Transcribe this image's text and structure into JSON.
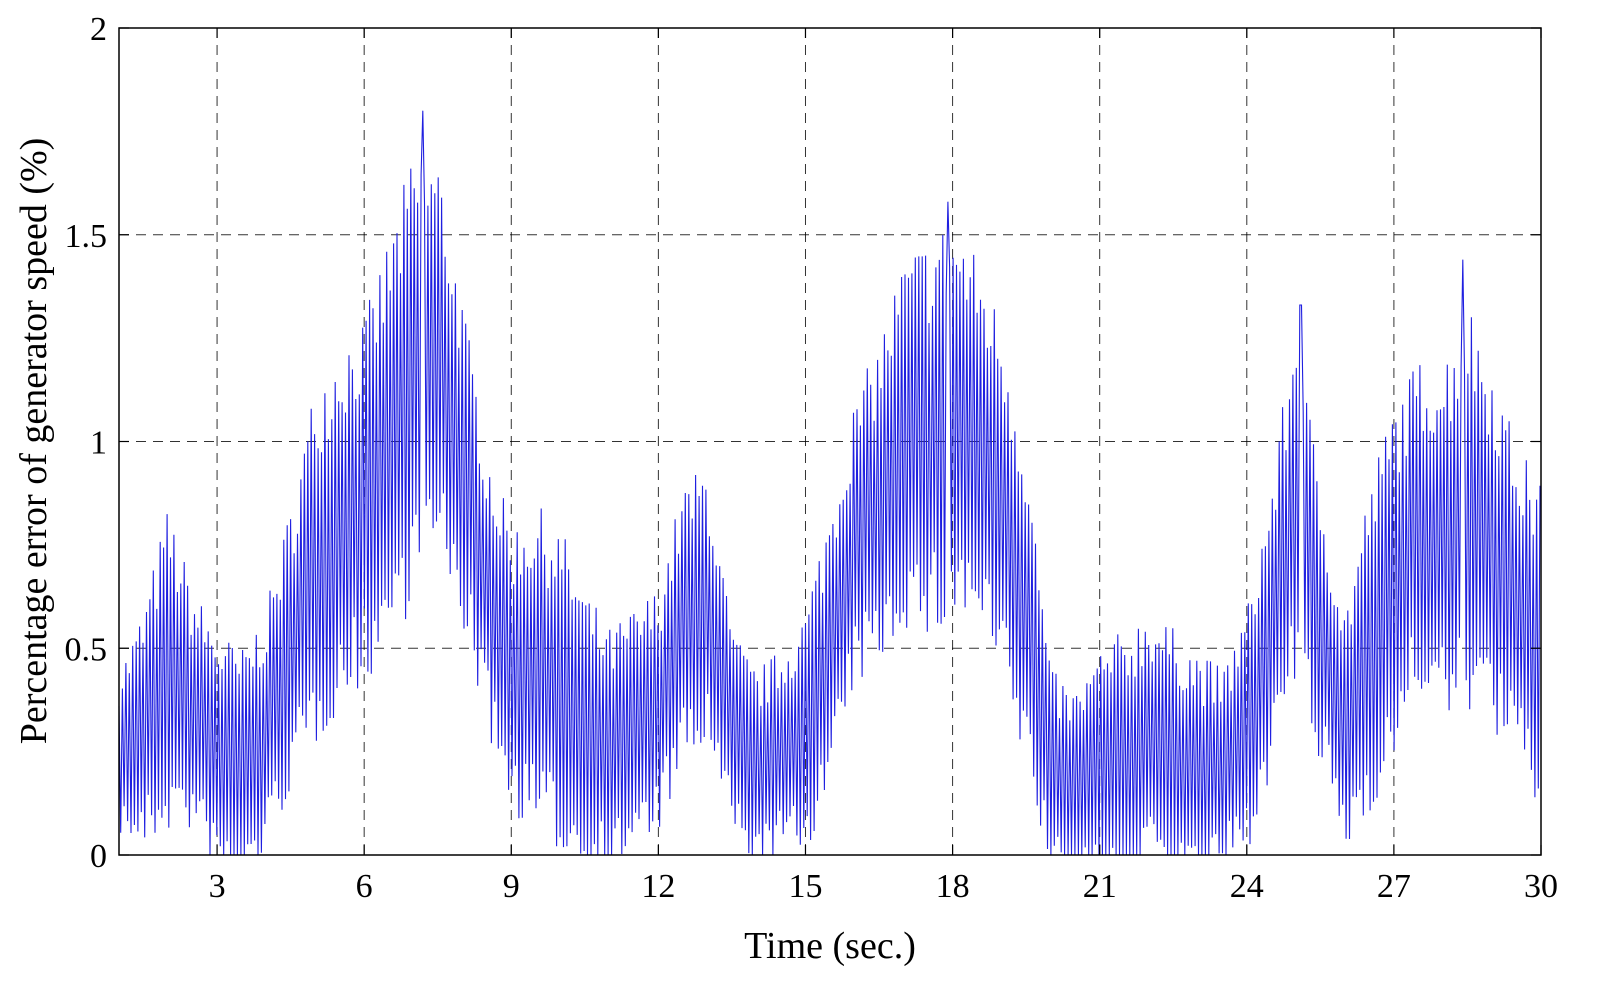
{
  "chart_data": {
    "type": "line",
    "title": "",
    "xlabel": "Time (sec.)",
    "ylabel": "Percentage error of generator speed (%)",
    "xlim": [
      1,
      30
    ],
    "ylim": [
      0,
      2
    ],
    "xticks": [
      3,
      6,
      9,
      12,
      15,
      18,
      21,
      24,
      27,
      30
    ],
    "xtick_labels": [
      "3",
      "6",
      "9",
      "12",
      "15",
      "18",
      "21",
      "24",
      "27",
      "30"
    ],
    "yticks": [
      0,
      0.5,
      1,
      1.5,
      2
    ],
    "ytick_labels": [
      "0",
      "0.5",
      "1",
      "1.5",
      "2"
    ],
    "grid": true,
    "grid_style": "dashed",
    "line_color": "#1f1fe0",
    "legend": "none",
    "series": [
      {
        "envelope_center": {
          "x": [
            1.0,
            1.5,
            2.0,
            2.5,
            3.0,
            3.5,
            4.0,
            4.5,
            5.0,
            5.5,
            6.0,
            6.5,
            7.0,
            7.5,
            8.0,
            8.5,
            9.0,
            9.5,
            10.0,
            10.5,
            11.0,
            11.5,
            12.0,
            12.5,
            13.0,
            13.5,
            14.0,
            14.5,
            15.0,
            15.5,
            16.0,
            16.5,
            17.0,
            17.5,
            18.0,
            18.5,
            19.0,
            19.5,
            20.0,
            20.5,
            21.0,
            21.5,
            22.0,
            22.5,
            23.0,
            23.5,
            24.0,
            24.5,
            25.0,
            25.5,
            26.0,
            26.5,
            27.0,
            27.5,
            28.0,
            28.5,
            29.0,
            29.5,
            30.0
          ],
          "y": [
            0.25,
            0.3,
            0.45,
            0.35,
            0.25,
            0.2,
            0.3,
            0.5,
            0.7,
            0.8,
            0.85,
            1.0,
            1.15,
            1.2,
            0.95,
            0.65,
            0.45,
            0.45,
            0.4,
            0.3,
            0.25,
            0.3,
            0.35,
            0.55,
            0.6,
            0.3,
            0.2,
            0.25,
            0.3,
            0.5,
            0.75,
            0.85,
            1.0,
            1.0,
            1.05,
            1.0,
            0.85,
            0.6,
            0.2,
            0.15,
            0.2,
            0.2,
            0.3,
            0.25,
            0.2,
            0.2,
            0.3,
            0.55,
            0.85,
            0.55,
            0.3,
            0.5,
            0.65,
            0.8,
            0.75,
            0.85,
            0.75,
            0.6,
            0.5
          ]
        },
        "envelope_halfwidth": {
          "x": [
            1.0,
            1.5,
            2.0,
            2.5,
            3.0,
            3.5,
            4.0,
            4.5,
            5.0,
            5.5,
            6.0,
            6.5,
            7.0,
            7.5,
            8.0,
            8.5,
            9.0,
            9.5,
            10.0,
            10.5,
            11.0,
            11.5,
            12.0,
            12.5,
            13.0,
            13.5,
            14.0,
            14.5,
            15.0,
            15.5,
            16.0,
            16.5,
            17.0,
            17.5,
            18.0,
            18.5,
            19.0,
            19.5,
            20.0,
            20.5,
            21.0,
            21.5,
            22.0,
            22.5,
            23.0,
            23.5,
            24.0,
            24.5,
            25.0,
            25.5,
            26.0,
            26.5,
            27.0,
            27.5,
            28.0,
            28.5,
            29.0,
            29.5,
            30.0
          ],
          "y": [
            0.2,
            0.3,
            0.4,
            0.3,
            0.3,
            0.3,
            0.3,
            0.35,
            0.45,
            0.45,
            0.45,
            0.5,
            0.55,
            0.5,
            0.4,
            0.35,
            0.35,
            0.4,
            0.4,
            0.35,
            0.3,
            0.3,
            0.3,
            0.35,
            0.35,
            0.25,
            0.25,
            0.25,
            0.3,
            0.35,
            0.35,
            0.4,
            0.45,
            0.5,
            0.5,
            0.45,
            0.45,
            0.4,
            0.25,
            0.25,
            0.3,
            0.35,
            0.3,
            0.3,
            0.3,
            0.25,
            0.3,
            0.35,
            0.45,
            0.35,
            0.3,
            0.4,
            0.45,
            0.4,
            0.45,
            0.5,
            0.45,
            0.4,
            0.4
          ]
        },
        "oscillation_period_sec": 0.07,
        "peaks": [
          {
            "x": 7.2,
            "y": 1.8
          },
          {
            "x": 17.9,
            "y": 1.58
          },
          {
            "x": 25.1,
            "y": 1.33
          },
          {
            "x": 28.4,
            "y": 1.44
          }
        ]
      }
    ]
  }
}
